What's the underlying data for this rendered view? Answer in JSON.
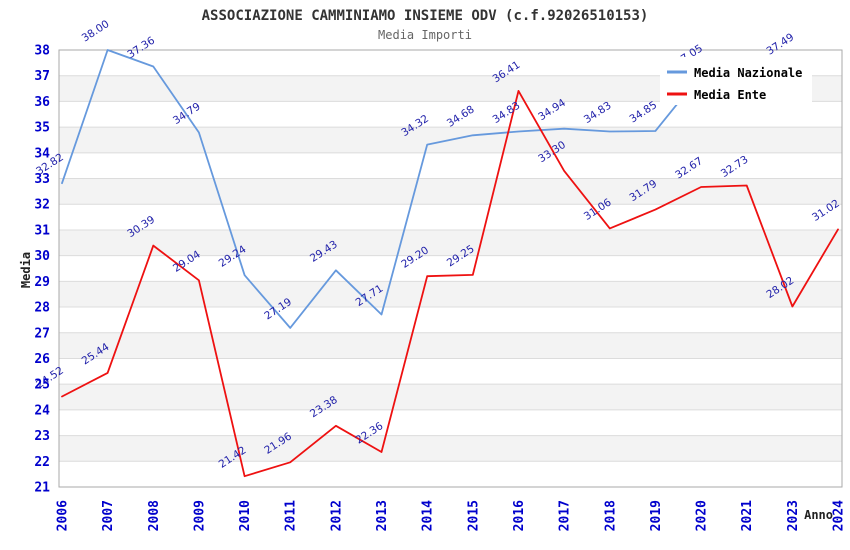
{
  "header": {
    "title": "ASSOCIAZIONE CAMMINIAMO INSIEME ODV (c.f.92026510153)",
    "subtitle": "Media Importi"
  },
  "chart_data": {
    "type": "line",
    "title": "ASSOCIAZIONE CAMMINIAMO INSIEME ODV (c.f.92026510153)",
    "subtitle": "Media Importi",
    "xlabel": "Anno",
    "ylabel": "Media",
    "ylim": [
      21,
      38
    ],
    "y_tick_step": 1,
    "grid": true,
    "legend_position": "top-right",
    "categories": [
      "2006",
      "2007",
      "2008",
      "2009",
      "2010",
      "2011",
      "2012",
      "2013",
      "2014",
      "2015",
      "2016",
      "2017",
      "2018",
      "2019",
      "2020",
      "2021",
      "2023",
      "2024"
    ],
    "series": [
      {
        "name": "Media Nazionale",
        "color": "#6699dd",
        "values": [
          32.82,
          38.0,
          37.36,
          34.79,
          29.24,
          27.19,
          29.43,
          27.71,
          34.32,
          34.68,
          34.83,
          34.94,
          34.83,
          34.85,
          37.05,
          null,
          37.49,
          null
        ]
      },
      {
        "name": "Media Ente",
        "color": "#ee1111",
        "values": [
          24.52,
          25.44,
          30.39,
          29.04,
          21.42,
          21.96,
          23.38,
          22.36,
          29.2,
          29.25,
          36.41,
          33.3,
          31.06,
          31.79,
          32.67,
          32.73,
          28.02,
          31.02
        ]
      }
    ],
    "colors": {
      "tick_label": "#0000cc",
      "point_label": "#2222aa",
      "band_fill": "#f3f3f3",
      "gridline": "#dcdcdc",
      "plot_border": "#aaaaaa"
    }
  }
}
